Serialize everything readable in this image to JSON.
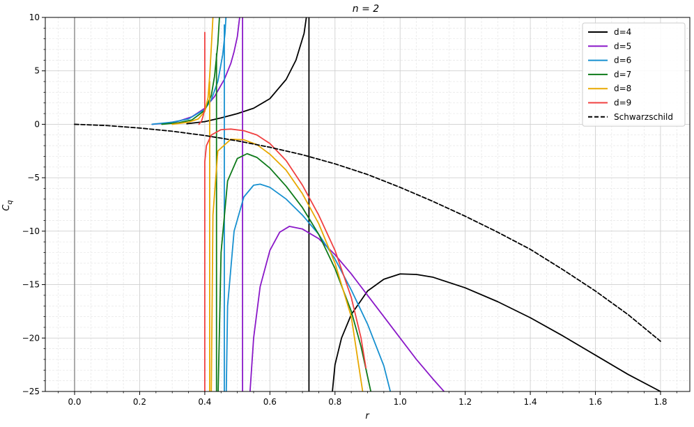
{
  "chart_data": {
    "type": "line",
    "title": "n = 2",
    "xlabel": "r",
    "ylabel": "C_q",
    "xlim": [
      -0.09,
      1.89
    ],
    "ylim": [
      -25,
      10
    ],
    "grid": true,
    "minor_grid": true,
    "legend_position": "top-right",
    "x_ticks": [
      0.0,
      0.2,
      0.4,
      0.6,
      0.8,
      1.0,
      1.2,
      1.4,
      1.6,
      1.8
    ],
    "x_tick_labels": [
      "0.0",
      "0.2",
      "0.4",
      "0.6",
      "0.8",
      "1.0",
      "1.2",
      "1.4",
      "1.6",
      "1.8"
    ],
    "y_ticks": [
      10,
      5,
      0,
      -5,
      -10,
      -15,
      -20,
      -25
    ],
    "y_tick_labels": [
      "10",
      "5",
      "0",
      "−5",
      "−10",
      "−15",
      "−20",
      "−25"
    ],
    "reference_lines": [
      {
        "orientation": "vertical",
        "x": 0.0,
        "color": "#888888"
      },
      {
        "orientation": "vertical",
        "x": 0.72,
        "color": "#000000"
      }
    ],
    "series": [
      {
        "name": "d=4",
        "color": "#000000",
        "dash": "solid",
        "segments": [
          [
            [
              0.345,
              0.05
            ],
            [
              0.4,
              0.25
            ],
            [
              0.45,
              0.6
            ],
            [
              0.5,
              1.0
            ],
            [
              0.55,
              1.5
            ],
            [
              0.6,
              2.4
            ],
            [
              0.65,
              4.2
            ],
            [
              0.68,
              6.0
            ],
            [
              0.705,
              8.5
            ],
            [
              0.712,
              10
            ]
          ],
          [
            [
              0.792,
              -25
            ],
            [
              0.8,
              -22.5
            ],
            [
              0.82,
              -20
            ],
            [
              0.85,
              -17.8
            ],
            [
              0.9,
              -15.6
            ],
            [
              0.95,
              -14.5
            ],
            [
              1.0,
              -14.0
            ],
            [
              1.05,
              -14.05
            ],
            [
              1.1,
              -14.3
            ],
            [
              1.2,
              -15.3
            ],
            [
              1.3,
              -16.6
            ],
            [
              1.4,
              -18.1
            ],
            [
              1.5,
              -19.8
            ],
            [
              1.6,
              -21.6
            ],
            [
              1.7,
              -23.4
            ],
            [
              1.8,
              -25.0
            ]
          ]
        ]
      },
      {
        "name": "d=5",
        "color": "#8a18c8",
        "dash": "solid",
        "segments": [
          [
            [
              0.238,
              0.0
            ],
            [
              0.28,
              0.1
            ],
            [
              0.32,
              0.3
            ],
            [
              0.36,
              0.7
            ],
            [
              0.4,
              1.5
            ],
            [
              0.43,
              2.6
            ],
            [
              0.46,
              4.2
            ],
            [
              0.48,
              5.7
            ],
            [
              0.49,
              6.8
            ],
            [
              0.5,
              8.2
            ],
            [
              0.507,
              10
            ]
          ],
          [
            [
              0.516,
              10
            ],
            [
              0.516,
              -25
            ]
          ],
          [
            [
              0.539,
              -25
            ],
            [
              0.55,
              -20
            ],
            [
              0.57,
              -15.2
            ],
            [
              0.6,
              -11.8
            ],
            [
              0.63,
              -10.1
            ],
            [
              0.66,
              -9.55
            ],
            [
              0.7,
              -9.8
            ],
            [
              0.75,
              -10.7
            ],
            [
              0.8,
              -12.2
            ],
            [
              0.85,
              -14.0
            ],
            [
              0.9,
              -16.0
            ],
            [
              0.95,
              -18.0
            ],
            [
              1.0,
              -20.0
            ],
            [
              1.05,
              -22.0
            ],
            [
              1.1,
              -23.8
            ],
            [
              1.135,
              -25
            ]
          ]
        ]
      },
      {
        "name": "d=6",
        "color": "#1790d0",
        "dash": "solid",
        "segments": [
          [
            [
              0.238,
              0.0
            ],
            [
              0.3,
              0.2
            ],
            [
              0.35,
              0.5
            ],
            [
              0.4,
              1.4
            ],
            [
              0.42,
              2.3
            ],
            [
              0.44,
              4.0
            ],
            [
              0.455,
              6.5
            ],
            [
              0.462,
              8.5
            ],
            [
              0.465,
              10
            ]
          ],
          [
            [
              0.46,
              9.3
            ],
            [
              0.46,
              -25
            ]
          ],
          [
            [
              0.466,
              -25
            ],
            [
              0.47,
              -17
            ],
            [
              0.49,
              -10
            ],
            [
              0.52,
              -6.8
            ],
            [
              0.55,
              -5.7
            ],
            [
              0.57,
              -5.6
            ],
            [
              0.6,
              -5.9
            ],
            [
              0.65,
              -7.0
            ],
            [
              0.7,
              -8.5
            ],
            [
              0.75,
              -10.3
            ],
            [
              0.8,
              -12.6
            ],
            [
              0.85,
              -15.5
            ],
            [
              0.9,
              -18.7
            ],
            [
              0.95,
              -22.6
            ],
            [
              0.97,
              -25
            ]
          ]
        ]
      },
      {
        "name": "d=7",
        "color": "#0e7a1a",
        "dash": "solid",
        "segments": [
          [
            [
              0.268,
              0.0
            ],
            [
              0.32,
              0.15
            ],
            [
              0.36,
              0.4
            ],
            [
              0.4,
              1.3
            ],
            [
              0.42,
              2.7
            ],
            [
              0.43,
              4.5
            ],
            [
              0.44,
              7.5
            ],
            [
              0.445,
              10
            ]
          ],
          [
            [
              0.436,
              6.6
            ],
            [
              0.436,
              -25
            ]
          ],
          [
            [
              0.441,
              -25
            ],
            [
              0.45,
              -12
            ],
            [
              0.47,
              -5.3
            ],
            [
              0.5,
              -3.2
            ],
            [
              0.53,
              -2.75
            ],
            [
              0.56,
              -3.1
            ],
            [
              0.6,
              -4.1
            ],
            [
              0.65,
              -5.8
            ],
            [
              0.7,
              -7.8
            ],
            [
              0.75,
              -10.3
            ],
            [
              0.8,
              -13.5
            ],
            [
              0.85,
              -17.5
            ],
            [
              0.88,
              -20.8
            ],
            [
              0.91,
              -25
            ]
          ]
        ]
      },
      {
        "name": "d=8",
        "color": "#e8a800",
        "dash": "solid",
        "segments": [
          [
            [
              0.3,
              0.0
            ],
            [
              0.35,
              0.2
            ],
            [
              0.38,
              0.5
            ],
            [
              0.4,
              1.2
            ],
            [
              0.41,
              2.5
            ],
            [
              0.415,
              4.5
            ],
            [
              0.42,
              7.2
            ],
            [
              0.425,
              10
            ]
          ],
          [
            [
              0.415,
              4.0
            ],
            [
              0.415,
              -25
            ]
          ],
          [
            [
              0.42,
              -25
            ],
            [
              0.425,
              -8.5
            ],
            [
              0.44,
              -2.5
            ],
            [
              0.48,
              -1.4
            ],
            [
              0.52,
              -1.45
            ],
            [
              0.56,
              -1.9
            ],
            [
              0.6,
              -2.8
            ],
            [
              0.65,
              -4.3
            ],
            [
              0.7,
              -6.5
            ],
            [
              0.75,
              -9.3
            ],
            [
              0.8,
              -13.0
            ],
            [
              0.85,
              -18.0
            ],
            [
              0.885,
              -25
            ]
          ]
        ]
      },
      {
        "name": "d=9",
        "color": "#f04040",
        "dash": "solid",
        "segments": [
          [
            [
              0.382,
              0.0
            ],
            [
              0.39,
              0.3
            ],
            [
              0.395,
              0.8
            ],
            [
              0.4,
              1.5
            ]
          ],
          [
            [
              0.4,
              8.6
            ],
            [
              0.4,
              1.5
            ]
          ],
          [
            [
              0.4,
              -25
            ],
            [
              0.4,
              -3.5
            ],
            [
              0.405,
              -2.0
            ],
            [
              0.42,
              -1.0
            ],
            [
              0.45,
              -0.5
            ],
            [
              0.48,
              -0.45
            ],
            [
              0.52,
              -0.6
            ],
            [
              0.56,
              -1.0
            ],
            [
              0.6,
              -1.8
            ],
            [
              0.65,
              -3.4
            ],
            [
              0.7,
              -5.7
            ],
            [
              0.75,
              -8.5
            ],
            [
              0.8,
              -11.8
            ],
            [
              0.85,
              -16.2
            ],
            [
              0.88,
              -20.0
            ],
            [
              0.895,
              -22.8
            ]
          ]
        ]
      },
      {
        "name": "Schwarzschild",
        "color": "#000000",
        "dash": "dashed",
        "segments": [
          [
            [
              0.0,
              0.0
            ],
            [
              0.1,
              -0.12
            ],
            [
              0.2,
              -0.35
            ],
            [
              0.3,
              -0.65
            ],
            [
              0.4,
              -1.05
            ],
            [
              0.5,
              -1.55
            ],
            [
              0.6,
              -2.15
            ],
            [
              0.7,
              -2.85
            ],
            [
              0.8,
              -3.7
            ],
            [
              0.9,
              -4.7
            ],
            [
              1.0,
              -5.9
            ],
            [
              1.1,
              -7.2
            ],
            [
              1.2,
              -8.6
            ],
            [
              1.3,
              -10.1
            ],
            [
              1.4,
              -11.7
            ],
            [
              1.5,
              -13.6
            ],
            [
              1.6,
              -15.6
            ],
            [
              1.7,
              -17.8
            ],
            [
              1.8,
              -20.3
            ]
          ]
        ]
      }
    ]
  }
}
